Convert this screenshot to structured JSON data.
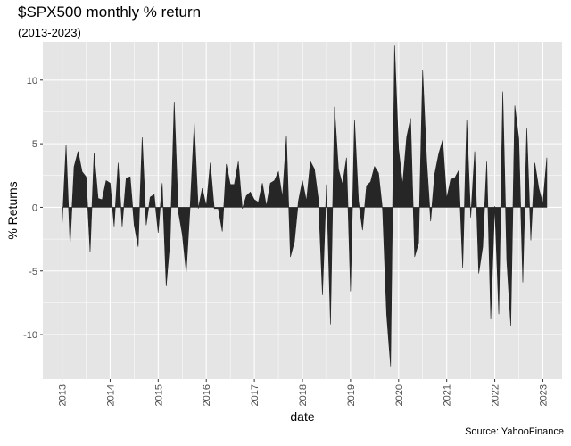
{
  "chart_data": {
    "type": "area",
    "title": "$SPX500 monthly % return",
    "subtitle": "(2013-2023)",
    "caption": "Source: YahooFinance",
    "xlabel": "date",
    "ylabel": "% Returns",
    "ylim": [
      -13.5,
      13
    ],
    "xlim": [
      2012.6,
      2023.4
    ],
    "grid": true,
    "y_ticks": [
      -10,
      -5,
      0,
      5,
      10
    ],
    "x_ticks": [
      "2013",
      "2014",
      "2015",
      "2016",
      "2017",
      "2018",
      "2019",
      "2020",
      "2021",
      "2022",
      "2023"
    ],
    "fill_color": "#262626",
    "panel_color": "#e5e5e5",
    "points": [
      {
        "date": "2013-01",
        "value": -1.5
      },
      {
        "date": "2013-02",
        "value": 4.9
      },
      {
        "date": "2013-03",
        "value": -3.0
      },
      {
        "date": "2013-04",
        "value": 3.2
      },
      {
        "date": "2013-05",
        "value": 4.4
      },
      {
        "date": "2013-06",
        "value": 2.8
      },
      {
        "date": "2013-07",
        "value": 2.4
      },
      {
        "date": "2013-08",
        "value": -3.5
      },
      {
        "date": "2013-09",
        "value": 4.3
      },
      {
        "date": "2013-10",
        "value": 0.7
      },
      {
        "date": "2013-11",
        "value": 0.6
      },
      {
        "date": "2013-12",
        "value": 2.1
      },
      {
        "date": "2014-01",
        "value": 1.9
      },
      {
        "date": "2014-02",
        "value": -1.5
      },
      {
        "date": "2014-03",
        "value": 3.5
      },
      {
        "date": "2014-04",
        "value": -1.5
      },
      {
        "date": "2014-05",
        "value": 2.3
      },
      {
        "date": "2014-06",
        "value": 2.4
      },
      {
        "date": "2014-07",
        "value": -1.4
      },
      {
        "date": "2014-08",
        "value": -3.1
      },
      {
        "date": "2014-09",
        "value": 5.5
      },
      {
        "date": "2014-10",
        "value": -1.4
      },
      {
        "date": "2014-11",
        "value": 0.8
      },
      {
        "date": "2014-12",
        "value": 1.0
      },
      {
        "date": "2015-01",
        "value": -2.0
      },
      {
        "date": "2015-02",
        "value": 1.9
      },
      {
        "date": "2015-03",
        "value": -6.2
      },
      {
        "date": "2015-04",
        "value": -2.5
      },
      {
        "date": "2015-05",
        "value": 8.3
      },
      {
        "date": "2015-06",
        "value": -0.3
      },
      {
        "date": "2015-07",
        "value": -2.1
      },
      {
        "date": "2015-08",
        "value": -5.1
      },
      {
        "date": "2015-09",
        "value": 0.2
      },
      {
        "date": "2015-10",
        "value": 6.6
      },
      {
        "date": "2015-11",
        "value": -0.1
      },
      {
        "date": "2015-12",
        "value": 1.5
      },
      {
        "date": "2016-01",
        "value": 0.1
      },
      {
        "date": "2016-02",
        "value": 3.5
      },
      {
        "date": "2016-03",
        "value": -0.1
      },
      {
        "date": "2016-04",
        "value": -0.1
      },
      {
        "date": "2016-05",
        "value": -1.9
      },
      {
        "date": "2016-06",
        "value": 3.4
      },
      {
        "date": "2016-07",
        "value": 1.8
      },
      {
        "date": "2016-08",
        "value": 1.8
      },
      {
        "date": "2016-09",
        "value": 3.6
      },
      {
        "date": "2016-10",
        "value": -0.1
      },
      {
        "date": "2016-11",
        "value": 0.9
      },
      {
        "date": "2016-12",
        "value": 1.2
      },
      {
        "date": "2017-01",
        "value": 0.6
      },
      {
        "date": "2017-02",
        "value": 0.4
      },
      {
        "date": "2017-03",
        "value": 1.9
      },
      {
        "date": "2017-04",
        "value": 0.1
      },
      {
        "date": "2017-05",
        "value": 1.9
      },
      {
        "date": "2017-06",
        "value": 2.1
      },
      {
        "date": "2017-07",
        "value": 2.8
      },
      {
        "date": "2017-08",
        "value": 0.8
      },
      {
        "date": "2017-09",
        "value": 5.6
      },
      {
        "date": "2017-10",
        "value": -3.9
      },
      {
        "date": "2017-11",
        "value": -2.7
      },
      {
        "date": "2017-12",
        "value": 0.5
      },
      {
        "date": "2018-01",
        "value": 2.1
      },
      {
        "date": "2018-02",
        "value": 0.5
      },
      {
        "date": "2018-03",
        "value": 3.6
      },
      {
        "date": "2018-04",
        "value": 3.0
      },
      {
        "date": "2018-05",
        "value": 0.6
      },
      {
        "date": "2018-06",
        "value": -6.9
      },
      {
        "date": "2018-07",
        "value": 1.8
      },
      {
        "date": "2018-08",
        "value": -9.2
      },
      {
        "date": "2018-09",
        "value": 7.9
      },
      {
        "date": "2018-10",
        "value": 3.0
      },
      {
        "date": "2018-11",
        "value": 1.8
      },
      {
        "date": "2018-12",
        "value": 3.9
      },
      {
        "date": "2019-01",
        "value": -6.6
      },
      {
        "date": "2019-02",
        "value": 6.9
      },
      {
        "date": "2019-03",
        "value": 0.5
      },
      {
        "date": "2019-04",
        "value": -1.8
      },
      {
        "date": "2019-05",
        "value": 1.7
      },
      {
        "date": "2019-06",
        "value": 2.0
      },
      {
        "date": "2019-07",
        "value": 3.2
      },
      {
        "date": "2019-08",
        "value": 2.7
      },
      {
        "date": "2019-09",
        "value": -0.2
      },
      {
        "date": "2019-10",
        "value": -8.4
      },
      {
        "date": "2019-11",
        "value": -12.5
      },
      {
        "date": "2019-12",
        "value": 12.7
      },
      {
        "date": "2020-01",
        "value": 4.6
      },
      {
        "date": "2020-02",
        "value": 1.8
      },
      {
        "date": "2020-03",
        "value": 5.5
      },
      {
        "date": "2020-04",
        "value": 7.0
      },
      {
        "date": "2020-05",
        "value": -3.9
      },
      {
        "date": "2020-06",
        "value": -2.8
      },
      {
        "date": "2020-07",
        "value": 10.8
      },
      {
        "date": "2020-08",
        "value": 3.7
      },
      {
        "date": "2020-09",
        "value": -1.1
      },
      {
        "date": "2020-10",
        "value": 2.6
      },
      {
        "date": "2020-11",
        "value": 4.2
      },
      {
        "date": "2020-12",
        "value": 5.3
      },
      {
        "date": "2021-01",
        "value": 0.7
      },
      {
        "date": "2021-02",
        "value": 2.2
      },
      {
        "date": "2021-03",
        "value": 2.3
      },
      {
        "date": "2021-04",
        "value": 2.9
      },
      {
        "date": "2021-05",
        "value": -4.8
      },
      {
        "date": "2021-06",
        "value": 6.9
      },
      {
        "date": "2021-07",
        "value": -0.8
      },
      {
        "date": "2021-08",
        "value": 4.4
      },
      {
        "date": "2021-09",
        "value": -5.2
      },
      {
        "date": "2021-10",
        "value": -3.1
      },
      {
        "date": "2021-11",
        "value": 3.6
      },
      {
        "date": "2021-12",
        "value": -8.8
      },
      {
        "date": "2022-01",
        "value": 0.1
      },
      {
        "date": "2022-02",
        "value": -8.4
      },
      {
        "date": "2022-03",
        "value": 9.1
      },
      {
        "date": "2022-04",
        "value": -4.2
      },
      {
        "date": "2022-05",
        "value": -9.3
      },
      {
        "date": "2022-06",
        "value": 8.0
      },
      {
        "date": "2022-07",
        "value": 5.4
      },
      {
        "date": "2022-08",
        "value": -5.9
      },
      {
        "date": "2022-09",
        "value": 6.2
      },
      {
        "date": "2022-10",
        "value": -2.6
      },
      {
        "date": "2022-11",
        "value": 3.5
      },
      {
        "date": "2022-12",
        "value": 1.5
      },
      {
        "date": "2023-01",
        "value": 0.3
      },
      {
        "date": "2023-02",
        "value": 3.9
      }
    ]
  }
}
